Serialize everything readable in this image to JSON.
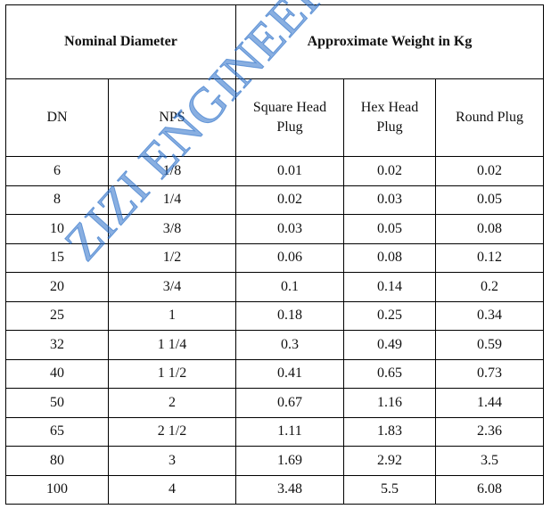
{
  "header": {
    "nominal_diameter": "Nominal Diameter",
    "approx_weight": "Approximate Weight in Kg"
  },
  "columns": {
    "dn": "DN",
    "nps": "NPS",
    "square": "Square Head Plug",
    "hex": "Hex Head Plug",
    "round": "Round Plug"
  },
  "rows": [
    {
      "dn": "6",
      "nps": "1/8",
      "square": "0.01",
      "hex": "0.02",
      "round": "0.02"
    },
    {
      "dn": "8",
      "nps": "1/4",
      "square": "0.02",
      "hex": "0.03",
      "round": "0.05"
    },
    {
      "dn": "10",
      "nps": "3/8",
      "square": "0.03",
      "hex": "0.05",
      "round": "0.08"
    },
    {
      "dn": "15",
      "nps": "1/2",
      "square": "0.06",
      "hex": "0.08",
      "round": "0.12"
    },
    {
      "dn": "20",
      "nps": "3/4",
      "square": "0.1",
      "hex": "0.14",
      "round": "0.2"
    },
    {
      "dn": "25",
      "nps": "1",
      "square": "0.18",
      "hex": "0.25",
      "round": "0.34"
    },
    {
      "dn": "32",
      "nps": "1 1/4",
      "square": "0.3",
      "hex": "0.49",
      "round": "0.59"
    },
    {
      "dn": "40",
      "nps": "1 1/2",
      "square": "0.41",
      "hex": "0.65",
      "round": "0.73"
    },
    {
      "dn": "50",
      "nps": "2",
      "square": "0.67",
      "hex": "1.16",
      "round": "1.44"
    },
    {
      "dn": "65",
      "nps": "2 1/2",
      "square": "1.11",
      "hex": "1.83",
      "round": "2.36"
    },
    {
      "dn": "80",
      "nps": "3",
      "square": "1.69",
      "hex": "2.92",
      "round": "3.5"
    },
    {
      "dn": "100",
      "nps": "4",
      "square": "3.48",
      "hex": "5.5",
      "round": "6.08"
    }
  ],
  "watermark": "ZIZI ENGINEERING CO LTD",
  "colors": {
    "watermark": "#286ec8",
    "border": "#000000"
  }
}
